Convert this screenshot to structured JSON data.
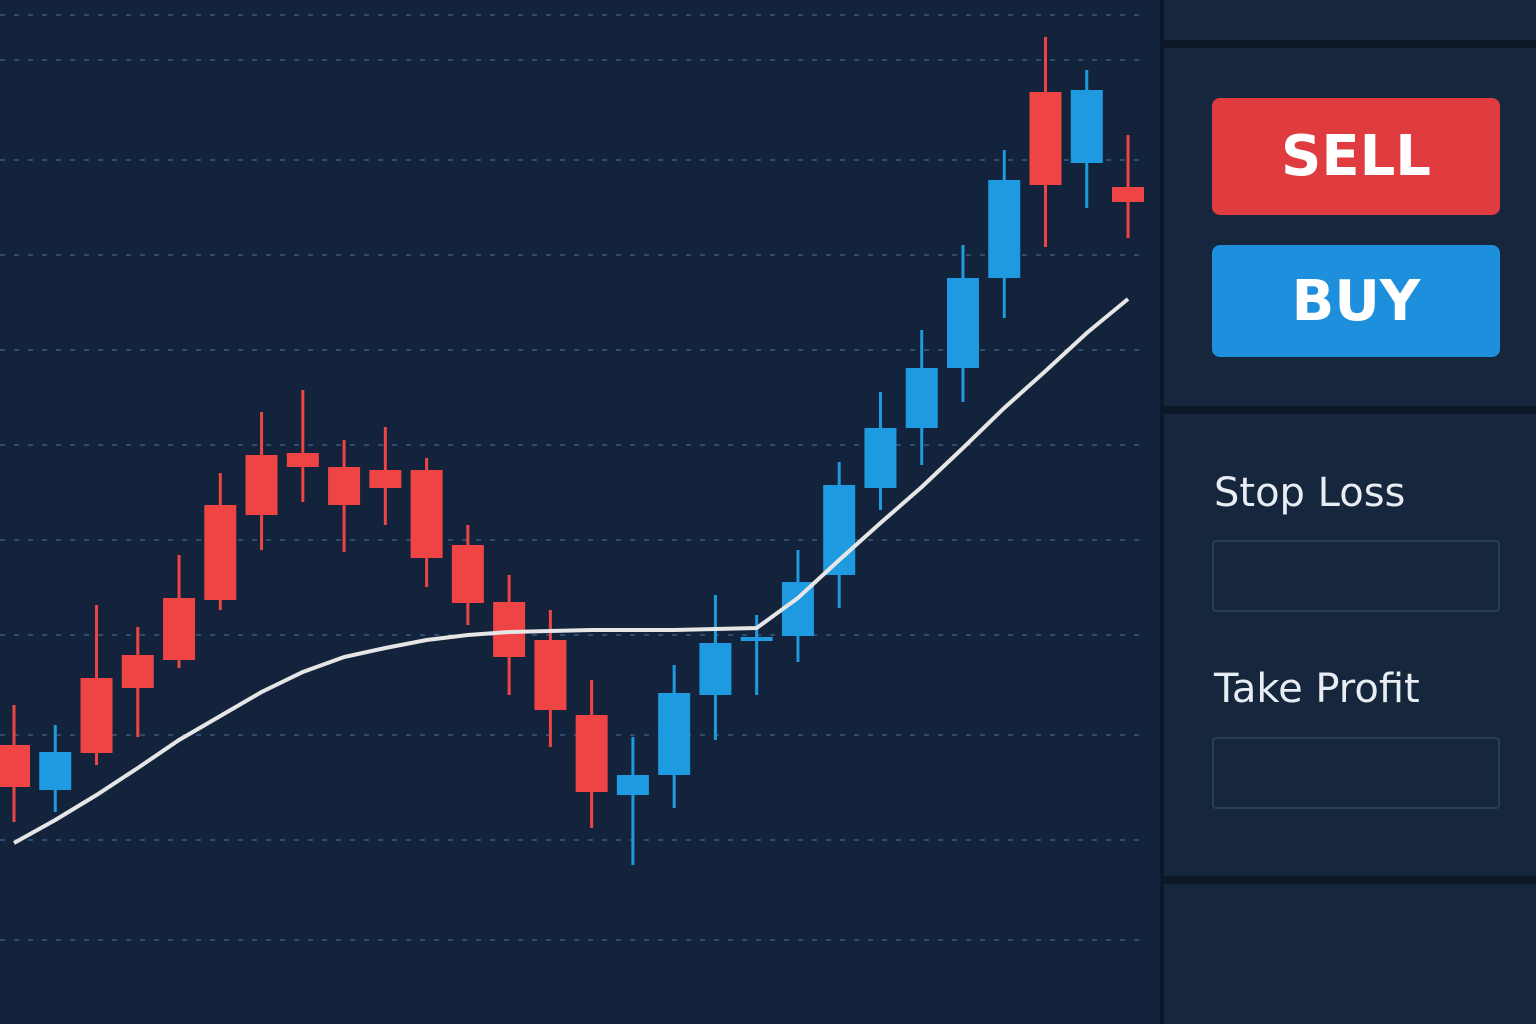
{
  "chart_data": {
    "type": "candlestick",
    "open": [
      25.5,
      21.0,
      32.2,
      34.5,
      40.2,
      49.5,
      54.5,
      54.7,
      53.3,
      53.0,
      53.0,
      45.5,
      39.8,
      36.0,
      28.5,
      20.5,
      22.5,
      30.5,
      35.9,
      36.4,
      42.5,
      51.2,
      57.2,
      63.2,
      72.2,
      90.8,
      83.7,
      81.3
    ],
    "high": [
      29.5,
      27.5,
      39.5,
      37.3,
      44.5,
      52.7,
      58.8,
      61.0,
      56.0,
      57.3,
      54.2,
      47.5,
      42.5,
      39.0,
      32.0,
      26.3,
      33.5,
      40.5,
      38.5,
      45.0,
      53.8,
      60.8,
      67.0,
      75.5,
      85.0,
      96.3,
      93.0,
      86.5
    ],
    "low": [
      17.8,
      18.8,
      23.5,
      26.3,
      33.2,
      39.0,
      45.0,
      49.8,
      44.8,
      47.5,
      41.3,
      37.5,
      30.5,
      25.3,
      17.2,
      13.5,
      19.2,
      26.0,
      30.5,
      33.8,
      39.2,
      49.0,
      53.5,
      59.8,
      68.2,
      75.3,
      79.2,
      76.2
    ],
    "close": [
      21.3,
      24.8,
      24.7,
      31.2,
      34.0,
      40.0,
      48.5,
      53.3,
      49.5,
      51.2,
      44.2,
      39.7,
      34.3,
      29.0,
      20.8,
      22.5,
      30.7,
      35.7,
      36.3,
      41.8,
      51.5,
      57.2,
      63.2,
      72.2,
      82.0,
      81.5,
      91.0,
      79.8
    ],
    "line_values": [
      15.7,
      18.0,
      20.5,
      23.2,
      26.0,
      28.4,
      30.8,
      32.8,
      34.3,
      35.2,
      36.0,
      36.5,
      36.8,
      36.9,
      37.0,
      37.0,
      37.0,
      37.1,
      37.2,
      40.2,
      44.0,
      47.7,
      51.3,
      55.2,
      59.2,
      62.9,
      66.7,
      70.1
    ],
    "up_color": "#1e9be0",
    "down_color": "#ef4444",
    "line_color": "#e6e6e6",
    "ylim": [
      0,
      100
    ],
    "yticks": [
      6,
      16,
      26.5,
      36.5,
      46,
      55.5,
      65,
      74.5,
      84,
      94,
      98.5
    ],
    "grid": true
  },
  "panel": {
    "sell": "SELL",
    "buy": "BUY",
    "stop_loss": "Stop Loss",
    "take_profit": "Take Profit"
  }
}
